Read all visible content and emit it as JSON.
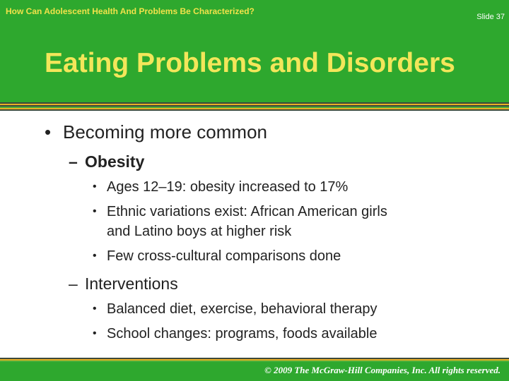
{
  "header": {
    "kicker": "How Can Adolescent Health And Problems Be Characterized?",
    "slide_number": "Slide 37",
    "title": "Eating Problems and Disorders"
  },
  "content": {
    "bullet": "•",
    "dash": "–",
    "point1": "Becoming more common",
    "sub1": "Obesity",
    "sub1_items": [
      "Ages 12–19: obesity increased to 17%",
      "Ethnic variations exist: African American girls",
      "and Latino boys at higher risk",
      "Few cross-cultural comparisons done"
    ],
    "sub2": "Interventions",
    "sub2_items": [
      "Balanced diet, exercise, behavioral therapy",
      "School changes: programs, foods available"
    ]
  },
  "footer": {
    "copyright": "© 2009 The McGraw-Hill Companies, Inc. All rights reserved."
  },
  "colors": {
    "header_green": "#2ea82e",
    "title_yellow": "#f3e65a",
    "stripe_dark": "#3d4a3a",
    "stripe_orange": "#e8b025",
    "stripe_green": "#4caf3a"
  }
}
